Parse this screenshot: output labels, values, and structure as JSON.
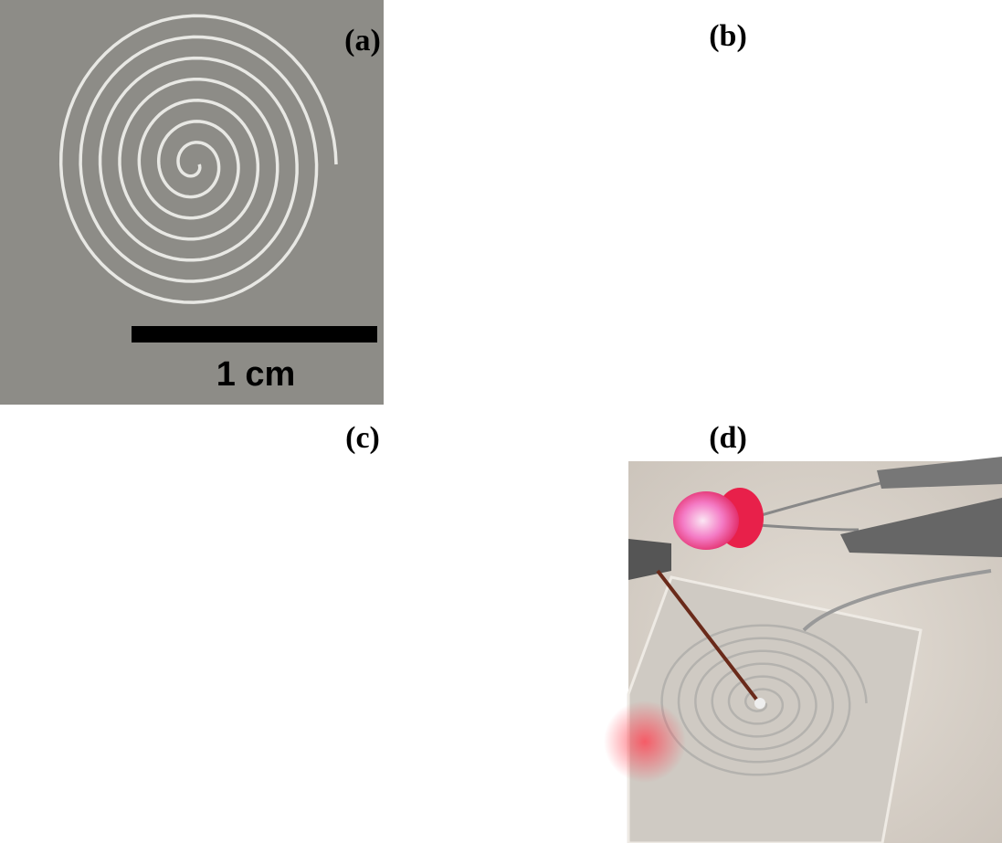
{
  "panels": [
    {
      "label": "(a)",
      "scale_bar": "1 cm"
    },
    {
      "label": "(b)"
    },
    {
      "label": "(c)"
    },
    {
      "label": "(d)"
    }
  ]
}
